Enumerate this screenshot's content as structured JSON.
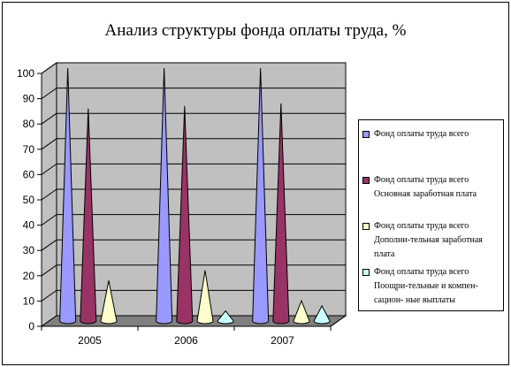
{
  "chart_data": {
    "type": "bar",
    "title": "Анализ структуры фонда оплаты труда, %",
    "categories": [
      "2005",
      "2006",
      "2007"
    ],
    "ylim": [
      0,
      100
    ],
    "yticks": [
      0,
      10,
      20,
      30,
      40,
      50,
      60,
      70,
      80,
      90,
      100
    ],
    "grid": true,
    "legend_position": "right",
    "series": [
      {
        "name": "Фонд оплаты труда всего",
        "values": [
          100,
          100,
          100
        ],
        "color": "#9999ff"
      },
      {
        "name": "Фонд оплаты труда всего Основная заработная плата",
        "values": [
          84,
          85,
          86
        ],
        "color": "#993366"
      },
      {
        "name": "Фонд оплаты труда всего Дополни-тельная заработная плата",
        "values": [
          16,
          20,
          8
        ],
        "color": "#ffffcc"
      },
      {
        "name": "Фонд оплаты труда всего Поощри-тельные и компен-сацион- ные выплаты",
        "values": [
          0,
          4,
          6
        ],
        "color": "#ccffff"
      }
    ],
    "legend_lines": [
      [
        "Фонд оплаты труда всего"
      ],
      [
        "Фонд оплаты труда всего",
        "Основная заработная плата"
      ],
      [
        "Фонд оплаты труда всего",
        "Дополни-тельная заработная",
        "плата"
      ],
      [
        "Фонд оплаты труда всего",
        "Поощри-тельные и компен-",
        "сацион- ные выплаты"
      ]
    ]
  }
}
